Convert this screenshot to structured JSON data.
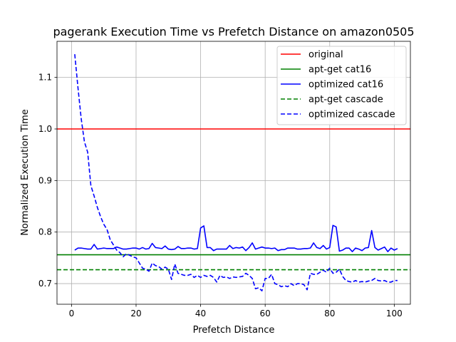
{
  "chart_data": {
    "type": "line",
    "title": "pagerank Execution Time vs Prefetch Distance on amazon0505",
    "xlabel": "Prefetch Distance",
    "ylabel": "Normalized Execution Time",
    "xlim": [
      -4.5,
      105
    ],
    "ylim": [
      0.66,
      1.17
    ],
    "x_ticks": [
      0,
      20,
      40,
      60,
      80,
      100
    ],
    "y_ticks": [
      0.7,
      0.8,
      0.9,
      1.0,
      1.1
    ],
    "x_tick_labels": [
      "0",
      "20",
      "40",
      "60",
      "80",
      "100"
    ],
    "y_tick_labels": [
      "0.7",
      "0.8",
      "0.9",
      "1.0",
      "1.1"
    ],
    "grid": true,
    "legend_position": "top-right",
    "series": [
      {
        "name": "original",
        "kind": "hline",
        "y": 1.0,
        "color": "#ff0000",
        "style": "solid"
      },
      {
        "name": "apt-get cat16",
        "kind": "hline",
        "y": 0.756,
        "color": "#008000",
        "style": "solid"
      },
      {
        "name": "optimized cat16",
        "kind": "line",
        "color": "#0000ff",
        "style": "solid",
        "x_start": 1,
        "x_step": 1,
        "values": [
          0.765,
          0.769,
          0.769,
          0.768,
          0.767,
          0.767,
          0.776,
          0.767,
          0.768,
          0.769,
          0.768,
          0.768,
          0.768,
          0.771,
          0.769,
          0.767,
          0.767,
          0.768,
          0.769,
          0.769,
          0.767,
          0.77,
          0.767,
          0.768,
          0.778,
          0.77,
          0.769,
          0.768,
          0.773,
          0.767,
          0.766,
          0.767,
          0.772,
          0.768,
          0.768,
          0.769,
          0.769,
          0.767,
          0.768,
          0.808,
          0.812,
          0.77,
          0.77,
          0.764,
          0.767,
          0.767,
          0.767,
          0.767,
          0.774,
          0.768,
          0.77,
          0.769,
          0.771,
          0.764,
          0.77,
          0.779,
          0.767,
          0.769,
          0.771,
          0.769,
          0.769,
          0.768,
          0.769,
          0.764,
          0.766,
          0.766,
          0.769,
          0.769,
          0.769,
          0.767,
          0.767,
          0.768,
          0.768,
          0.769,
          0.779,
          0.77,
          0.768,
          0.774,
          0.767,
          0.77,
          0.813,
          0.81,
          0.763,
          0.765,
          0.769,
          0.769,
          0.762,
          0.769,
          0.767,
          0.764,
          0.769,
          0.77,
          0.803,
          0.77,
          0.765,
          0.768,
          0.771,
          0.762,
          0.769,
          0.765,
          0.768
        ]
      },
      {
        "name": "apt-get cascade",
        "kind": "hline",
        "y": 0.727,
        "color": "#008000",
        "style": "dashed"
      },
      {
        "name": "optimized cascade",
        "kind": "line",
        "color": "#0000ff",
        "style": "dashed",
        "x_start": 1,
        "x_step": 1,
        "values": [
          1.145,
          1.08,
          1.02,
          0.975,
          0.955,
          0.89,
          0.87,
          0.848,
          0.83,
          0.815,
          0.805,
          0.785,
          0.775,
          0.765,
          0.76,
          0.752,
          0.758,
          0.755,
          0.752,
          0.75,
          0.74,
          0.73,
          0.728,
          0.724,
          0.74,
          0.735,
          0.733,
          0.728,
          0.732,
          0.728,
          0.708,
          0.738,
          0.72,
          0.718,
          0.716,
          0.716,
          0.718,
          0.712,
          0.716,
          0.712,
          0.716,
          0.714,
          0.716,
          0.712,
          0.703,
          0.716,
          0.712,
          0.713,
          0.71,
          0.713,
          0.712,
          0.713,
          0.714,
          0.72,
          0.716,
          0.71,
          0.69,
          0.692,
          0.686,
          0.71,
          0.71,
          0.718,
          0.7,
          0.698,
          0.694,
          0.696,
          0.694,
          0.7,
          0.696,
          0.7,
          0.7,
          0.698,
          0.688,
          0.72,
          0.718,
          0.718,
          0.722,
          0.726,
          0.722,
          0.73,
          0.72,
          0.722,
          0.728,
          0.714,
          0.706,
          0.704,
          0.703,
          0.706,
          0.703,
          0.704,
          0.703,
          0.705,
          0.706,
          0.71,
          0.706,
          0.705,
          0.706,
          0.703,
          0.703,
          0.706,
          0.706
        ]
      }
    ]
  }
}
